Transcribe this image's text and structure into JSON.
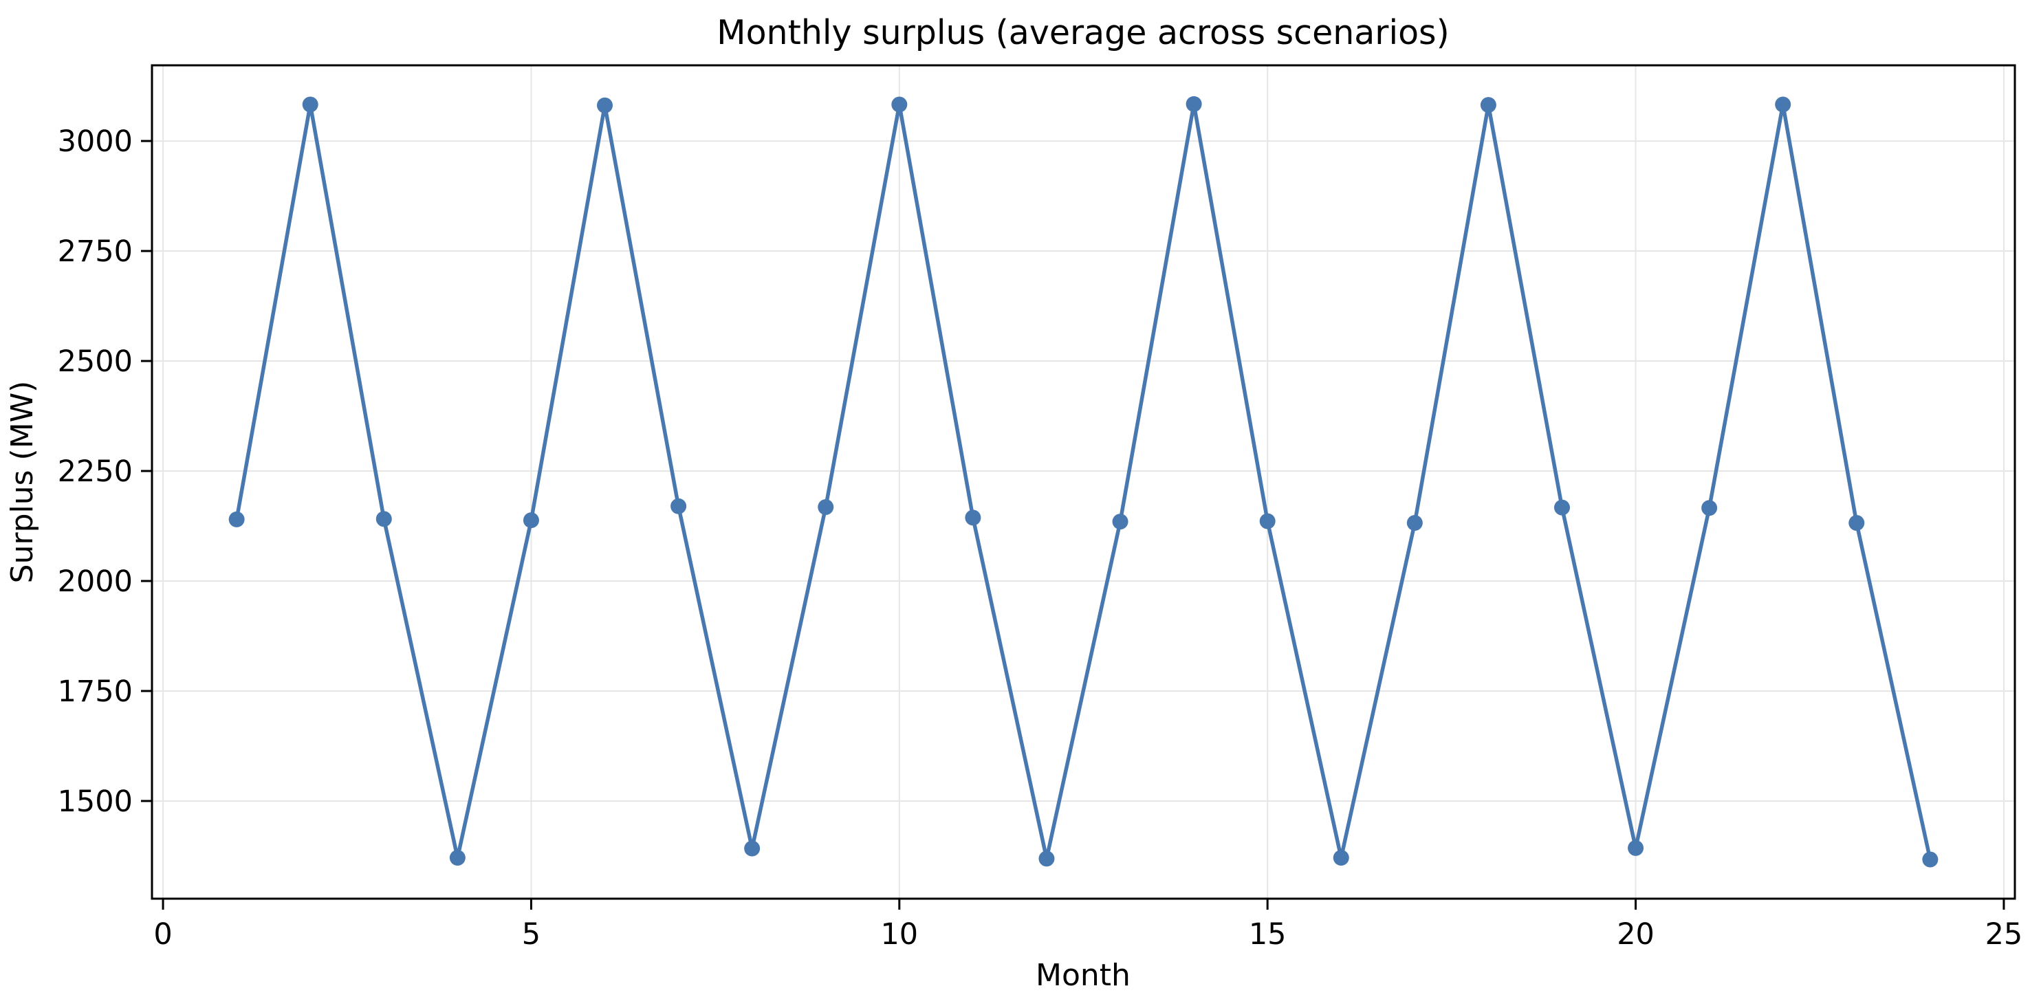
{
  "chart_data": {
    "type": "line",
    "title": "Monthly surplus (average across scenarios)",
    "xlabel": "Month",
    "ylabel": "Surplus (MW)",
    "x": [
      1,
      2,
      3,
      4,
      5,
      6,
      7,
      8,
      9,
      10,
      11,
      12,
      13,
      14,
      15,
      16,
      17,
      18,
      19,
      20,
      21,
      22,
      23,
      24
    ],
    "y": [
      2140,
      3083,
      2141,
      1371,
      2138,
      3081,
      2170,
      1392,
      2168,
      3083,
      2144,
      1369,
      2135,
      3084,
      2136,
      1371,
      2132,
      3082,
      2167,
      1393,
      2166,
      3083,
      2132,
      1367
    ],
    "xlim": [
      -0.15,
      25.15
    ],
    "ylim": [
      1278,
      3172
    ],
    "xticks": [
      0,
      5,
      10,
      15,
      20,
      25
    ],
    "yticks": [
      1500,
      1750,
      2000,
      2250,
      2500,
      2750,
      3000
    ],
    "grid": true,
    "legend": false,
    "marker": "circle",
    "marker_radius": 11.5,
    "line_width": 5.5,
    "line_color": "#4878b0",
    "grid_color": "#e6e6e6",
    "spine_color": "#000000",
    "background_color": "#ffffff"
  }
}
